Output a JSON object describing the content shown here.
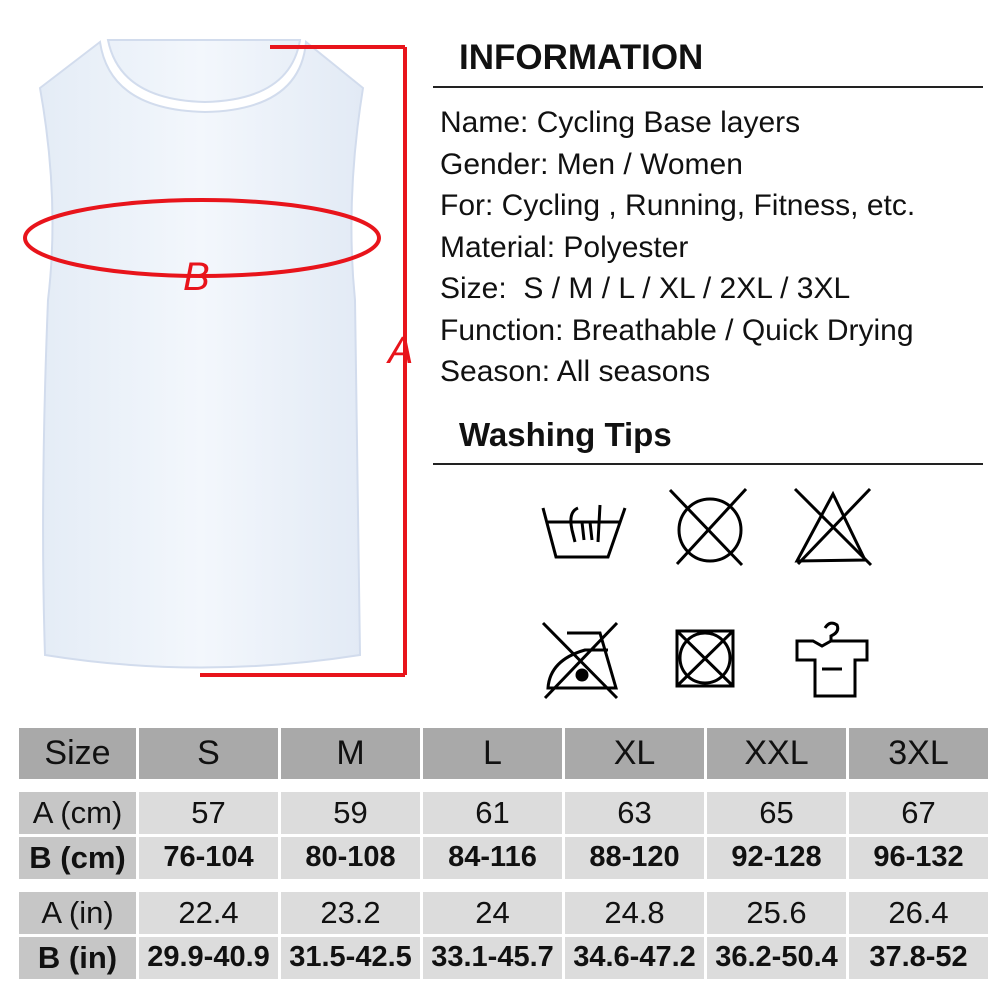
{
  "diagram": {
    "label_a": "A",
    "label_b": "B",
    "accent": "#e8141b"
  },
  "information": {
    "title": "INFORMATION",
    "lines": [
      "Name: Cycling Base layers",
      "Gender: Men / Women",
      "For: Cycling , Running, Fitness, etc.",
      "Material: Polyester",
      "Size:  S / M / L / XL / 2XL / 3XL",
      "Function: Breathable / Quick Drying",
      "Season: All seasons"
    ]
  },
  "washing": {
    "title": "Washing Tips",
    "icons": [
      "hand-wash-icon",
      "do-not-dry-clean-icon",
      "do-not-bleach-icon",
      "do-not-iron-icon",
      "do-not-tumble-dry-icon",
      "hang-dry-icon"
    ]
  },
  "size_table": {
    "header": [
      "Size",
      "S",
      "M",
      "L",
      "XL",
      "XXL",
      "3XL"
    ],
    "rows": [
      [
        "A (cm)",
        "57",
        "59",
        "61",
        "63",
        "65",
        "67"
      ],
      [
        "B (cm)",
        "76-104",
        "80-108",
        "84-116",
        "88-120",
        "92-128",
        "96-132"
      ],
      [
        "A (in)",
        "22.4",
        "23.2",
        "24",
        "24.8",
        "25.6",
        "26.4"
      ],
      [
        "B (in)",
        "29.9-40.9",
        "31.5-42.5",
        "33.1-45.7",
        "34.6-47.2",
        "36.2-50.4",
        "37.8-52"
      ]
    ]
  }
}
